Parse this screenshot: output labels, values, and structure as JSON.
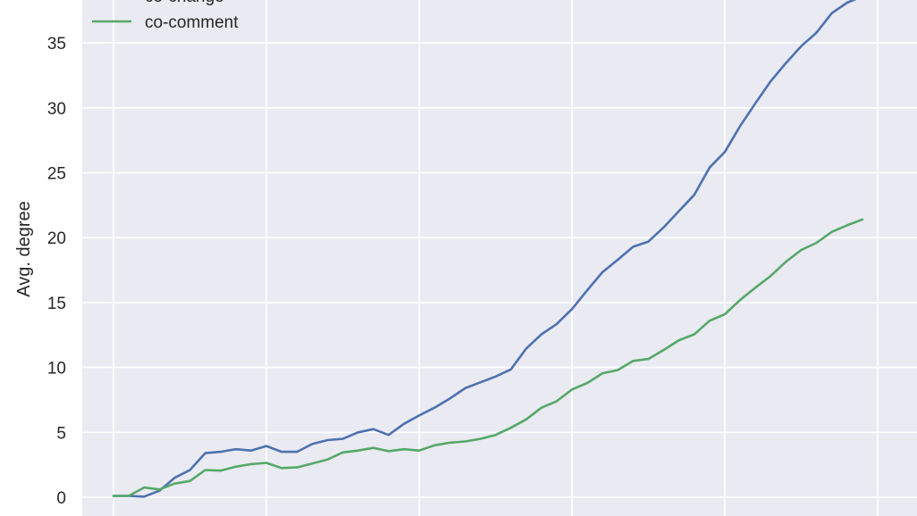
{
  "chart_data": {
    "type": "line",
    "ylabel": "Avg. degree",
    "ylim": [
      -0.5,
      38.5
    ],
    "yticks": [
      0,
      5,
      10,
      15,
      20,
      25,
      30,
      35
    ],
    "xlim": [
      -2,
      50
    ],
    "x_gridlines": [
      0,
      10,
      20,
      30,
      40,
      50
    ],
    "grid": true,
    "legend_position": "top-left",
    "series": [
      {
        "name": "co-change",
        "color": "#4c72b0",
        "x": [
          0,
          1,
          2,
          3,
          4,
          5,
          6,
          7,
          8,
          9,
          10,
          11,
          12,
          13,
          14,
          15,
          16,
          17,
          18,
          19,
          20,
          21,
          22,
          23,
          24,
          25,
          26,
          27,
          28,
          29,
          30,
          31,
          32,
          33,
          34,
          35,
          36,
          37,
          38,
          39,
          40,
          41,
          42,
          43,
          44,
          45,
          46,
          47,
          48,
          49
        ],
        "values": [
          0.1,
          0.1,
          0.05,
          0.5,
          1.5,
          2.1,
          3.4,
          3.5,
          3.7,
          3.6,
          3.95,
          3.5,
          3.5,
          4.1,
          4.4,
          4.5,
          5.0,
          5.25,
          4.8,
          5.65,
          6.3,
          6.9,
          7.6,
          8.4,
          8.85,
          9.3,
          9.85,
          11.45,
          12.55,
          13.35,
          14.5,
          15.95,
          17.35,
          18.3,
          19.3,
          19.7,
          20.8,
          22.05,
          23.3,
          25.4,
          26.6,
          28.6,
          30.35,
          32.05,
          33.45,
          34.75,
          35.8,
          37.3,
          38.1,
          38.6
        ]
      },
      {
        "name": "co-comment",
        "color": "#55a868",
        "x": [
          0,
          1,
          2,
          3,
          4,
          5,
          6,
          7,
          8,
          9,
          10,
          11,
          12,
          13,
          14,
          15,
          16,
          17,
          18,
          19,
          20,
          21,
          22,
          23,
          24,
          25,
          26,
          27,
          28,
          29,
          30,
          31,
          32,
          33,
          34,
          35,
          36,
          37,
          38,
          39,
          40,
          41,
          42,
          43,
          44,
          45,
          46,
          47,
          48,
          49
        ],
        "values": [
          0.1,
          0.1,
          0.75,
          0.6,
          1.05,
          1.25,
          2.1,
          2.05,
          2.35,
          2.55,
          2.65,
          2.25,
          2.3,
          2.6,
          2.9,
          3.45,
          3.6,
          3.8,
          3.55,
          3.7,
          3.6,
          4.0,
          4.2,
          4.3,
          4.5,
          4.8,
          5.35,
          6.0,
          6.9,
          7.4,
          8.3,
          8.8,
          9.55,
          9.8,
          10.5,
          10.65,
          11.35,
          12.1,
          12.55,
          13.6,
          14.1,
          15.2,
          16.15,
          17.05,
          18.15,
          19.05,
          19.6,
          20.45,
          20.95,
          21.4
        ]
      }
    ]
  }
}
